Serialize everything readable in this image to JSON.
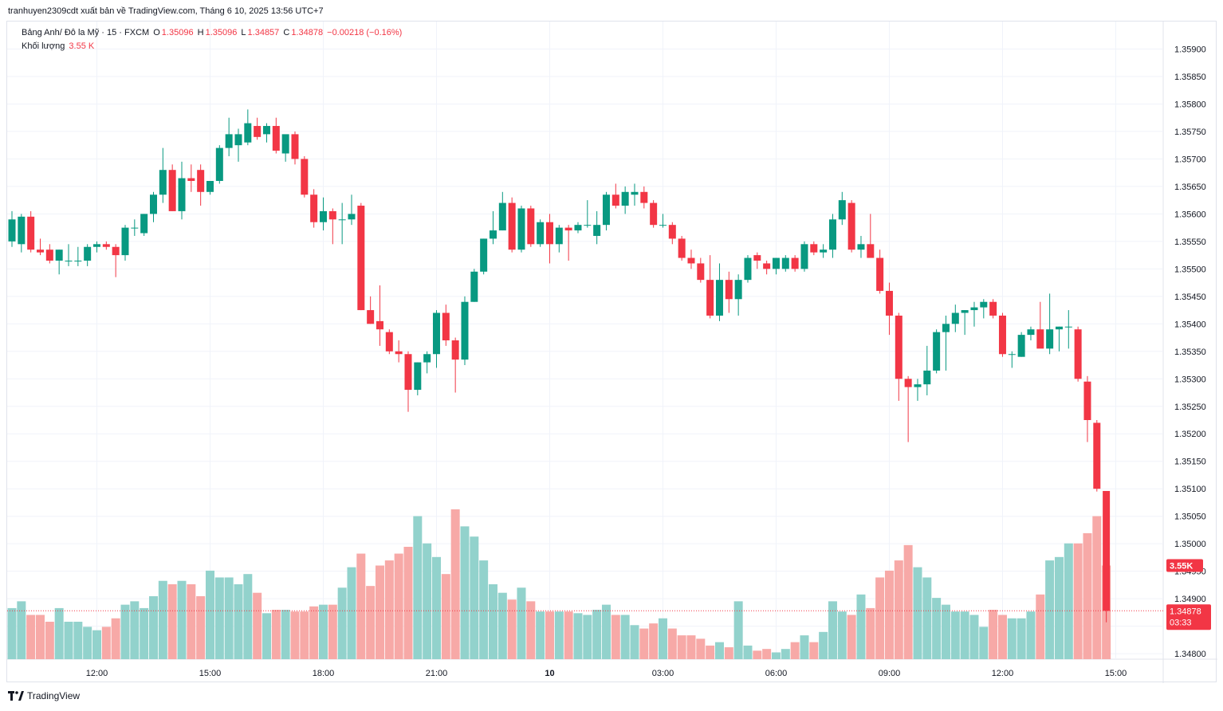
{
  "caption": "tranhuyen2309cdt xuất bản về TradingView.com, Tháng 6 10, 2025 13:56 UTC+7",
  "legend": {
    "symbol": "Bảng Anh/ Đô la Mỹ · 15 · FXCM",
    "o_label": "O",
    "o": "1.35096",
    "h_label": "H",
    "h": "1.35096",
    "l_label": "L",
    "l": "1.34857",
    "c_label": "C",
    "c": "1.34878",
    "change": "−0.00218 (−0.16%)",
    "volume_label": "Khối lượng",
    "volume": "3.55 K"
  },
  "price_tag": {
    "price": "1.34878",
    "countdown": "03:33",
    "volume_tag": "3.55K"
  },
  "brand": "TradingView",
  "colors": {
    "up": "#089981",
    "down": "#f23645",
    "vol_up": "#92d2cc",
    "vol_down": "#f7a9a7",
    "grid": "#f0f3fa"
  },
  "chart_data": {
    "type": "candlestick",
    "symbol": "GBP/USD",
    "interval": "15",
    "y_ticks": [
      "1.35900",
      "1.35850",
      "1.35800",
      "1.35750",
      "1.35700",
      "1.35650",
      "1.35600",
      "1.35550",
      "1.35500",
      "1.35450",
      "1.35400",
      "1.35350",
      "1.35300",
      "1.35250",
      "1.35200",
      "1.35150",
      "1.35100",
      "1.35050",
      "1.35000",
      "1.34950",
      "1.34900",
      "1.34850",
      "1.34800"
    ],
    "ylim": [
      1.3479,
      1.3595
    ],
    "x_ticks": [
      {
        "label": "12:00",
        "index": 9
      },
      {
        "label": "15:00",
        "index": 21
      },
      {
        "label": "18:00",
        "index": 33
      },
      {
        "label": "21:00",
        "index": 45
      },
      {
        "label": "10",
        "index": 57
      },
      {
        "label": "03:00",
        "index": 69
      },
      {
        "label": "06:00",
        "index": 81
      },
      {
        "label": "09:00",
        "index": 93
      },
      {
        "label": "12:00",
        "index": 105
      },
      {
        "label": "15:00",
        "index": 117
      }
    ],
    "candles": [
      {
        "o": 1.3555,
        "h": 1.35605,
        "l": 1.3554,
        "c": 1.3559,
        "v": 30
      },
      {
        "o": 1.35545,
        "h": 1.356,
        "l": 1.3553,
        "c": 1.35595,
        "v": 34
      },
      {
        "o": 1.35595,
        "h": 1.35605,
        "l": 1.3553,
        "c": 1.35535,
        "v": 26
      },
      {
        "o": 1.35535,
        "h": 1.35555,
        "l": 1.35525,
        "c": 1.3553,
        "v": 26
      },
      {
        "o": 1.35535,
        "h": 1.35545,
        "l": 1.3551,
        "c": 1.35515,
        "v": 22
      },
      {
        "o": 1.35515,
        "h": 1.35535,
        "l": 1.3549,
        "c": 1.35535,
        "v": 30
      },
      {
        "o": 1.35515,
        "h": 1.35545,
        "l": 1.35505,
        "c": 1.35515,
        "v": 22
      },
      {
        "o": 1.35515,
        "h": 1.3554,
        "l": 1.35505,
        "c": 1.35515,
        "v": 22
      },
      {
        "o": 1.35515,
        "h": 1.35545,
        "l": 1.35505,
        "c": 1.3554,
        "v": 19
      },
      {
        "o": 1.3554,
        "h": 1.3555,
        "l": 1.3553,
        "c": 1.35545,
        "v": 17
      },
      {
        "o": 1.35545,
        "h": 1.3555,
        "l": 1.35535,
        "c": 1.3554,
        "v": 19
      },
      {
        "o": 1.3554,
        "h": 1.35545,
        "l": 1.35485,
        "c": 1.35525,
        "v": 24
      },
      {
        "o": 1.35525,
        "h": 1.3558,
        "l": 1.35515,
        "c": 1.35575,
        "v": 32
      },
      {
        "o": 1.35575,
        "h": 1.3559,
        "l": 1.3556,
        "c": 1.35575,
        "v": 34
      },
      {
        "o": 1.35565,
        "h": 1.356,
        "l": 1.3556,
        "c": 1.356,
        "v": 30
      },
      {
        "o": 1.356,
        "h": 1.3564,
        "l": 1.35585,
        "c": 1.35635,
        "v": 37
      },
      {
        "o": 1.35635,
        "h": 1.3572,
        "l": 1.3562,
        "c": 1.3568,
        "v": 46
      },
      {
        "o": 1.3568,
        "h": 1.3569,
        "l": 1.35605,
        "c": 1.35605,
        "v": 44
      },
      {
        "o": 1.35605,
        "h": 1.35695,
        "l": 1.3559,
        "c": 1.35665,
        "v": 46
      },
      {
        "o": 1.35665,
        "h": 1.3569,
        "l": 1.3564,
        "c": 1.3566,
        "v": 44
      },
      {
        "o": 1.3568,
        "h": 1.3569,
        "l": 1.35615,
        "c": 1.3564,
        "v": 37
      },
      {
        "o": 1.3564,
        "h": 1.3566,
        "l": 1.35635,
        "c": 1.3566,
        "v": 52
      },
      {
        "o": 1.3566,
        "h": 1.35725,
        "l": 1.35655,
        "c": 1.3572,
        "v": 48
      },
      {
        "o": 1.3572,
        "h": 1.35775,
        "l": 1.35705,
        "c": 1.35745,
        "v": 48
      },
      {
        "o": 1.35725,
        "h": 1.35755,
        "l": 1.35695,
        "c": 1.35745,
        "v": 44
      },
      {
        "o": 1.3573,
        "h": 1.3579,
        "l": 1.35725,
        "c": 1.35765,
        "v": 50
      },
      {
        "o": 1.3576,
        "h": 1.35775,
        "l": 1.35735,
        "c": 1.3574,
        "v": 39
      },
      {
        "o": 1.35745,
        "h": 1.35765,
        "l": 1.3573,
        "c": 1.3576,
        "v": 27
      },
      {
        "o": 1.3576,
        "h": 1.35775,
        "l": 1.3571,
        "c": 1.35715,
        "v": 29
      },
      {
        "o": 1.3571,
        "h": 1.3574,
        "l": 1.35695,
        "c": 1.35745,
        "v": 29
      },
      {
        "o": 1.35745,
        "h": 1.3575,
        "l": 1.3569,
        "c": 1.357,
        "v": 28
      },
      {
        "o": 1.357,
        "h": 1.35705,
        "l": 1.3563,
        "c": 1.35635,
        "v": 28
      },
      {
        "o": 1.35635,
        "h": 1.35645,
        "l": 1.35575,
        "c": 1.35585,
        "v": 31
      },
      {
        "o": 1.35585,
        "h": 1.3563,
        "l": 1.3557,
        "c": 1.35605,
        "v": 32
      },
      {
        "o": 1.35605,
        "h": 1.3561,
        "l": 1.35545,
        "c": 1.3559,
        "v": 32
      },
      {
        "o": 1.3559,
        "h": 1.3562,
        "l": 1.35545,
        "c": 1.3559,
        "v": 42
      },
      {
        "o": 1.3559,
        "h": 1.35635,
        "l": 1.3558,
        "c": 1.356,
        "v": 54
      },
      {
        "o": 1.35615,
        "h": 1.3562,
        "l": 1.35425,
        "c": 1.35425,
        "v": 62
      },
      {
        "o": 1.35425,
        "h": 1.3545,
        "l": 1.354,
        "c": 1.354,
        "v": 43
      },
      {
        "o": 1.35405,
        "h": 1.3547,
        "l": 1.3536,
        "c": 1.3539,
        "v": 55
      },
      {
        "o": 1.35385,
        "h": 1.3539,
        "l": 1.35345,
        "c": 1.3535,
        "v": 58
      },
      {
        "o": 1.3535,
        "h": 1.3537,
        "l": 1.3533,
        "c": 1.35345,
        "v": 62
      },
      {
        "o": 1.35345,
        "h": 1.3535,
        "l": 1.3524,
        "c": 1.3528,
        "v": 66
      },
      {
        "o": 1.3528,
        "h": 1.3533,
        "l": 1.3527,
        "c": 1.3533,
        "v": 84
      },
      {
        "o": 1.3533,
        "h": 1.3535,
        "l": 1.3531,
        "c": 1.35345,
        "v": 68
      },
      {
        "o": 1.35345,
        "h": 1.35425,
        "l": 1.3532,
        "c": 1.3542,
        "v": 60
      },
      {
        "o": 1.3542,
        "h": 1.35435,
        "l": 1.3536,
        "c": 1.3537,
        "v": 50
      },
      {
        "o": 1.3537,
        "h": 1.35375,
        "l": 1.35275,
        "c": 1.35335,
        "v": 88
      },
      {
        "o": 1.35335,
        "h": 1.3545,
        "l": 1.35325,
        "c": 1.3544,
        "v": 78
      },
      {
        "o": 1.3544,
        "h": 1.355,
        "l": 1.3544,
        "c": 1.35495,
        "v": 72
      },
      {
        "o": 1.35495,
        "h": 1.35555,
        "l": 1.3549,
        "c": 1.35555,
        "v": 58
      },
      {
        "o": 1.35555,
        "h": 1.35605,
        "l": 1.35545,
        "c": 1.3557,
        "v": 44
      },
      {
        "o": 1.3557,
        "h": 1.3564,
        "l": 1.3557,
        "c": 1.3562,
        "v": 39
      },
      {
        "o": 1.3562,
        "h": 1.3563,
        "l": 1.3553,
        "c": 1.35535,
        "v": 35
      },
      {
        "o": 1.35535,
        "h": 1.35615,
        "l": 1.3553,
        "c": 1.3561,
        "v": 42
      },
      {
        "o": 1.3561,
        "h": 1.35615,
        "l": 1.3554,
        "c": 1.35545,
        "v": 34
      },
      {
        "o": 1.35545,
        "h": 1.3559,
        "l": 1.3554,
        "c": 1.35585,
        "v": 28
      },
      {
        "o": 1.35585,
        "h": 1.356,
        "l": 1.3551,
        "c": 1.35545,
        "v": 28
      },
      {
        "o": 1.35545,
        "h": 1.3558,
        "l": 1.3553,
        "c": 1.35575,
        "v": 28
      },
      {
        "o": 1.35575,
        "h": 1.3558,
        "l": 1.35515,
        "c": 1.3557,
        "v": 28
      },
      {
        "o": 1.3557,
        "h": 1.35585,
        "l": 1.35565,
        "c": 1.3558,
        "v": 27
      },
      {
        "o": 1.3558,
        "h": 1.35625,
        "l": 1.35575,
        "c": 1.3558,
        "v": 26
      },
      {
        "o": 1.3556,
        "h": 1.35605,
        "l": 1.35545,
        "c": 1.3558,
        "v": 29
      },
      {
        "o": 1.3558,
        "h": 1.3564,
        "l": 1.3557,
        "c": 1.35635,
        "v": 32
      },
      {
        "o": 1.35635,
        "h": 1.35655,
        "l": 1.3561,
        "c": 1.35615,
        "v": 26
      },
      {
        "o": 1.35615,
        "h": 1.3565,
        "l": 1.356,
        "c": 1.3564,
        "v": 26
      },
      {
        "o": 1.35635,
        "h": 1.35655,
        "l": 1.35615,
        "c": 1.3564,
        "v": 20
      },
      {
        "o": 1.3564,
        "h": 1.3565,
        "l": 1.3561,
        "c": 1.3562,
        "v": 18
      },
      {
        "o": 1.3562,
        "h": 1.35625,
        "l": 1.35575,
        "c": 1.3558,
        "v": 21
      },
      {
        "o": 1.3558,
        "h": 1.356,
        "l": 1.35575,
        "c": 1.3558,
        "v": 24
      },
      {
        "o": 1.3558,
        "h": 1.35585,
        "l": 1.35545,
        "c": 1.35555,
        "v": 18
      },
      {
        "o": 1.35555,
        "h": 1.3556,
        "l": 1.35515,
        "c": 1.3552,
        "v": 14
      },
      {
        "o": 1.3552,
        "h": 1.35535,
        "l": 1.355,
        "c": 1.3551,
        "v": 14
      },
      {
        "o": 1.3551,
        "h": 1.3552,
        "l": 1.35475,
        "c": 1.3548,
        "v": 12
      },
      {
        "o": 1.3548,
        "h": 1.35525,
        "l": 1.3541,
        "c": 1.35415,
        "v": 8
      },
      {
        "o": 1.35415,
        "h": 1.3551,
        "l": 1.35405,
        "c": 1.3548,
        "v": 10
      },
      {
        "o": 1.3548,
        "h": 1.35495,
        "l": 1.3542,
        "c": 1.35445,
        "v": 7
      },
      {
        "o": 1.35445,
        "h": 1.3549,
        "l": 1.35415,
        "c": 1.3548,
        "v": 34
      },
      {
        "o": 1.3548,
        "h": 1.35525,
        "l": 1.35475,
        "c": 1.3552,
        "v": 8
      },
      {
        "o": 1.35525,
        "h": 1.3553,
        "l": 1.355,
        "c": 1.35515,
        "v": 5
      },
      {
        "o": 1.3551,
        "h": 1.35515,
        "l": 1.3549,
        "c": 1.355,
        "v": 6
      },
      {
        "o": 1.355,
        "h": 1.3552,
        "l": 1.3549,
        "c": 1.3552,
        "v": 4
      },
      {
        "o": 1.355,
        "h": 1.35525,
        "l": 1.35495,
        "c": 1.3552,
        "v": 6
      },
      {
        "o": 1.3552,
        "h": 1.35525,
        "l": 1.35495,
        "c": 1.355,
        "v": 10
      },
      {
        "o": 1.355,
        "h": 1.3555,
        "l": 1.35495,
        "c": 1.35545,
        "v": 14
      },
      {
        "o": 1.35545,
        "h": 1.3555,
        "l": 1.35525,
        "c": 1.3553,
        "v": 10
      },
      {
        "o": 1.3553,
        "h": 1.35545,
        "l": 1.3552,
        "c": 1.35535,
        "v": 16
      },
      {
        "o": 1.35535,
        "h": 1.356,
        "l": 1.3552,
        "c": 1.3559,
        "v": 34
      },
      {
        "o": 1.3559,
        "h": 1.3564,
        "l": 1.3558,
        "c": 1.35625,
        "v": 28
      },
      {
        "o": 1.3562,
        "h": 1.35625,
        "l": 1.3553,
        "c": 1.35535,
        "v": 26
      },
      {
        "o": 1.35535,
        "h": 1.3556,
        "l": 1.3552,
        "c": 1.35545,
        "v": 38
      },
      {
        "o": 1.35545,
        "h": 1.356,
        "l": 1.35525,
        "c": 1.3552,
        "v": 30
      },
      {
        "o": 1.3552,
        "h": 1.35535,
        "l": 1.35455,
        "c": 1.3546,
        "v": 48
      },
      {
        "o": 1.3546,
        "h": 1.35475,
        "l": 1.3538,
        "c": 1.35415,
        "v": 52
      },
      {
        "o": 1.35415,
        "h": 1.3542,
        "l": 1.3526,
        "c": 1.353,
        "v": 58
      },
      {
        "o": 1.353,
        "h": 1.35305,
        "l": 1.35185,
        "c": 1.35285,
        "v": 67
      },
      {
        "o": 1.35285,
        "h": 1.353,
        "l": 1.3526,
        "c": 1.3529,
        "v": 54
      },
      {
        "o": 1.3529,
        "h": 1.3536,
        "l": 1.3527,
        "c": 1.35315,
        "v": 48
      },
      {
        "o": 1.35315,
        "h": 1.3539,
        "l": 1.3531,
        "c": 1.35385,
        "v": 36
      },
      {
        "o": 1.35385,
        "h": 1.35415,
        "l": 1.35315,
        "c": 1.354,
        "v": 32
      },
      {
        "o": 1.354,
        "h": 1.35435,
        "l": 1.35385,
        "c": 1.3542,
        "v": 28
      },
      {
        "o": 1.3542,
        "h": 1.35425,
        "l": 1.3538,
        "c": 1.35425,
        "v": 28
      },
      {
        "o": 1.35425,
        "h": 1.3544,
        "l": 1.35395,
        "c": 1.3543,
        "v": 26
      },
      {
        "o": 1.3543,
        "h": 1.35445,
        "l": 1.3541,
        "c": 1.3544,
        "v": 19
      },
      {
        "o": 1.3544,
        "h": 1.35445,
        "l": 1.3541,
        "c": 1.35415,
        "v": 29
      },
      {
        "o": 1.35415,
        "h": 1.3542,
        "l": 1.3534,
        "c": 1.35345,
        "v": 26
      },
      {
        "o": 1.35345,
        "h": 1.3535,
        "l": 1.3532,
        "c": 1.35345,
        "v": 24
      },
      {
        "o": 1.3534,
        "h": 1.35385,
        "l": 1.3534,
        "c": 1.3538,
        "v": 24
      },
      {
        "o": 1.3538,
        "h": 1.35395,
        "l": 1.3537,
        "c": 1.3539,
        "v": 28
      },
      {
        "o": 1.3539,
        "h": 1.3544,
        "l": 1.3536,
        "c": 1.35355,
        "v": 38
      },
      {
        "o": 1.35355,
        "h": 1.35455,
        "l": 1.35345,
        "c": 1.3539,
        "v": 58
      },
      {
        "o": 1.3539,
        "h": 1.35395,
        "l": 1.3535,
        "c": 1.35395,
        "v": 60
      },
      {
        "o": 1.35395,
        "h": 1.35425,
        "l": 1.35355,
        "c": 1.35395,
        "v": 68
      },
      {
        "o": 1.3539,
        "h": 1.35395,
        "l": 1.35295,
        "c": 1.353,
        "v": 68
      },
      {
        "o": 1.35295,
        "h": 1.35305,
        "l": 1.35185,
        "c": 1.35225,
        "v": 74
      },
      {
        "o": 1.3522,
        "h": 1.35225,
        "l": 1.35095,
        "c": 1.351,
        "v": 84
      },
      {
        "o": 1.35096,
        "h": 1.35096,
        "l": 1.34857,
        "c": 1.34878,
        "v": 55
      }
    ]
  }
}
